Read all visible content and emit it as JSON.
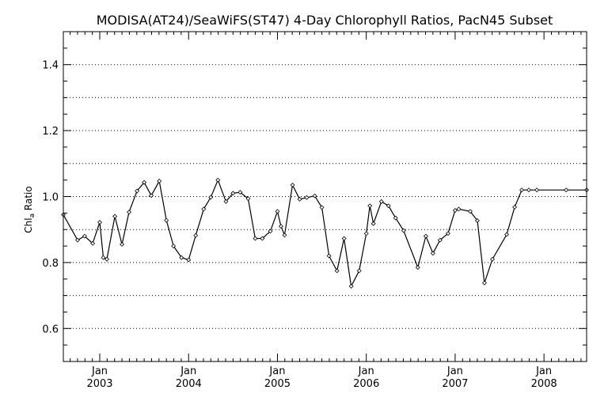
{
  "chart_data": {
    "type": "line",
    "title": "MODISA(AT24)/SeaWiFS(ST47) 4-Day Chlorophyll Ratios, PacN45 Subset",
    "ylabel_main": "Chl",
    "ylabel_sub": "a",
    "ylabel_tail": " Ratio",
    "xlim": [
      2002.59,
      2008.48
    ],
    "ylim": [
      0.5,
      1.5
    ],
    "y_ticks": [
      0.6,
      0.8,
      1.0,
      1.2,
      1.4
    ],
    "y_tick_labels": [
      "0.6",
      "0.8",
      "1.0",
      "1.2",
      "1.4"
    ],
    "y_grid": [
      0.6,
      0.7,
      0.8,
      0.9,
      1.0,
      1.1,
      1.2,
      1.3,
      1.4
    ],
    "x_ticks": [
      {
        "x": 2003.0,
        "month": "Jan",
        "year": "2003"
      },
      {
        "x": 2004.0,
        "month": "Jan",
        "year": "2004"
      },
      {
        "x": 2005.0,
        "month": "Jan",
        "year": "2005"
      },
      {
        "x": 2006.0,
        "month": "Jan",
        "year": "2006"
      },
      {
        "x": 2007.0,
        "month": "Jan",
        "year": "2007"
      },
      {
        "x": 2008.0,
        "month": "Jan",
        "year": "2008"
      }
    ],
    "grid": true,
    "series": [
      {
        "x": [
          2002.59,
          2002.75,
          2002.83,
          2002.92,
          2003.0,
          2003.04,
          2003.08,
          2003.17,
          2003.25,
          2003.33,
          2003.42,
          2003.5,
          2003.58,
          2003.67,
          2003.75,
          2003.83,
          2003.92,
          2004.0,
          2004.08,
          2004.17,
          2004.25,
          2004.33,
          2004.42,
          2004.5,
          2004.58,
          2004.67,
          2004.75,
          2004.83,
          2004.92,
          2005.0,
          2005.04,
          2005.08,
          2005.17,
          2005.25,
          2005.33,
          2005.42,
          2005.5,
          2005.58,
          2005.67,
          2005.75,
          2005.83,
          2005.92,
          2006.0,
          2006.04,
          2006.08,
          2006.17,
          2006.25,
          2006.33,
          2006.42,
          2006.58,
          2006.67,
          2006.75,
          2006.83,
          2006.92,
          2007.0,
          2007.04,
          2007.17,
          2007.25,
          2007.33,
          2007.42,
          2007.58,
          2007.67,
          2007.75,
          2007.83,
          2007.92,
          2008.25,
          2008.48
        ],
        "y": [
          0.945,
          0.868,
          0.88,
          0.858,
          0.922,
          0.815,
          0.81,
          0.94,
          0.855,
          0.953,
          1.017,
          1.043,
          1.003,
          1.047,
          0.928,
          0.85,
          0.815,
          0.808,
          0.882,
          0.962,
          0.998,
          1.05,
          0.985,
          1.01,
          1.013,
          0.994,
          0.873,
          0.873,
          0.895,
          0.955,
          0.91,
          0.883,
          1.035,
          0.992,
          0.997,
          1.002,
          0.967,
          0.82,
          0.775,
          0.873,
          0.728,
          0.775,
          0.888,
          0.972,
          0.918,
          0.985,
          0.972,
          0.935,
          0.897,
          0.785,
          0.88,
          0.828,
          0.868,
          0.888,
          0.958,
          0.962,
          0.955,
          0.927,
          0.738,
          0.81,
          0.885,
          0.968,
          1.02,
          1.02,
          1.02,
          1.02,
          1.02
        ]
      }
    ]
  }
}
